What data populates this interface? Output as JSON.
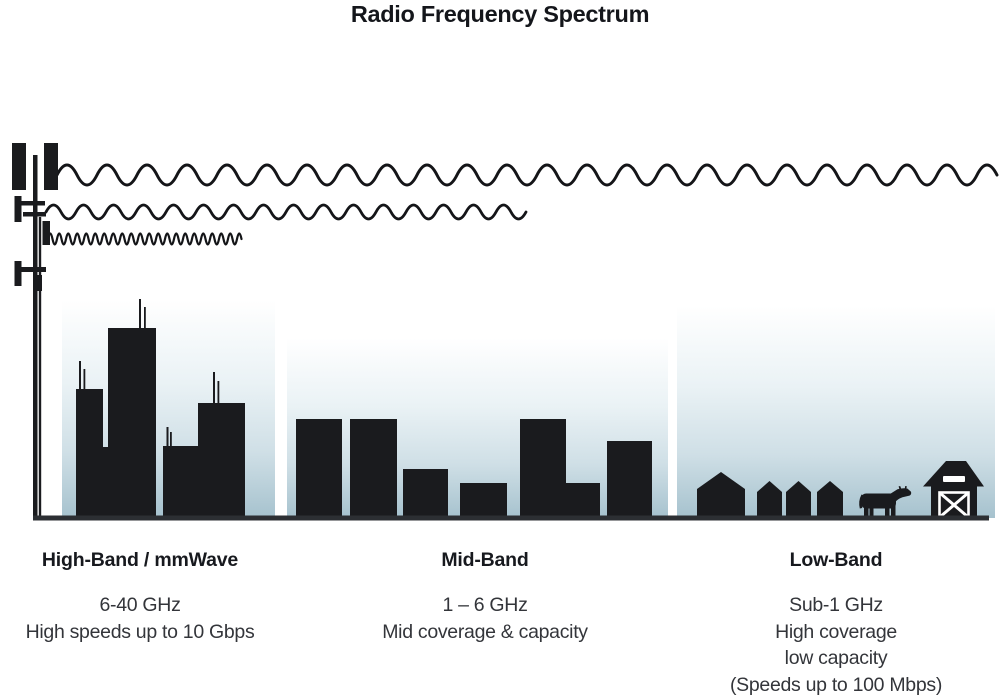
{
  "title": "Radio Frequency Spectrum",
  "colors": {
    "ink": "#1a1b1e",
    "sky_gradient_top": "#ffffff",
    "sky_gradient_bottom": "#a6c2ce",
    "ground": "#2c2f33",
    "heading_text": "#17191e",
    "body_text": "#33353a"
  },
  "tower_icon": "cell-tower-icon",
  "waves": [
    {
      "name": "long-wavelength-wave",
      "band": "Low-Band"
    },
    {
      "name": "medium-wavelength-wave",
      "band": "Mid-Band"
    },
    {
      "name": "short-wavelength-wave",
      "band": "High-Band / mmWave"
    }
  ],
  "bands": [
    {
      "label": "High-Band / mmWave",
      "lines": [
        "6-40 GHz",
        "High speeds up to 10 Gbps"
      ],
      "scene_icon": "city-skyscrapers-icon"
    },
    {
      "label": "Mid-Band",
      "lines": [
        "1 – 6 GHz",
        "Mid coverage & capacity"
      ],
      "scene_icon": "midrise-buildings-icon"
    },
    {
      "label": "Low-Band",
      "lines": [
        "Sub-1 GHz",
        "High coverage",
        "low capacity",
        "(Speeds up to 100 Mbps)"
      ],
      "scene_icon": "rural-houses-barn-cow-icon"
    }
  ]
}
